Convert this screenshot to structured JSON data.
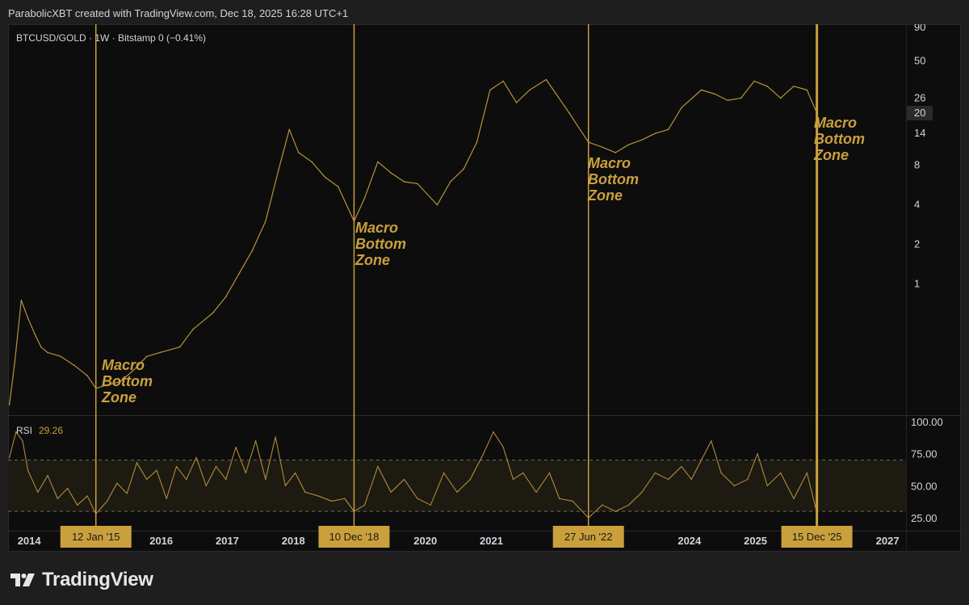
{
  "header": {
    "attribution": "ParabolicXBT created with TradingView.com, Dec 18, 2025 16:28 UTC+1",
    "symbol_line": "BTCUSD/GOLD · 1W · Bitstamp  0 (−0.41%)"
  },
  "footer": {
    "brand": "TradingView"
  },
  "colors": {
    "accent": "#c9a03c",
    "price_line": "#b8923a",
    "rsi_line": "#b08a3a",
    "zone_band": "#1d1a12",
    "background": "#0d0d0d"
  },
  "annotations": [
    {
      "date_label": "12 Jan '15",
      "year": 2015.03,
      "text_lines": [
        "Macro",
        "Bottom",
        "Zone"
      ]
    },
    {
      "date_label": "10 Dec '18",
      "year": 2018.94,
      "text_lines": [
        "Macro",
        "Bottom",
        "Zone"
      ]
    },
    {
      "date_label": "27 Jun '22",
      "year": 2022.49,
      "text_lines": [
        "Macro",
        "Bottom",
        "Zone"
      ]
    },
    {
      "date_label": "15 Dec '25",
      "year": 2025.95,
      "text_lines": [
        "Macro",
        "Bottom",
        "Zone"
      ]
    }
  ],
  "chart_data": [
    {
      "type": "line",
      "title": "BTCUSD/GOLD · 1W · Bitstamp",
      "y_scale": "log",
      "y_ticks": [
        1,
        2,
        4,
        8,
        14,
        20,
        26,
        50,
        90
      ],
      "current_value_label": "20",
      "x_ticks": [
        "2014",
        "2016",
        "2017",
        "2018",
        "2020",
        "2021",
        "2024",
        "2025",
        "2027"
      ],
      "xlim": [
        2013.7,
        2027.3
      ],
      "x": [
        2013.72,
        2013.8,
        2013.9,
        2014.0,
        2014.1,
        2014.2,
        2014.3,
        2014.5,
        2014.7,
        2014.9,
        2015.03,
        2015.2,
        2015.4,
        2015.6,
        2015.8,
        2016.0,
        2016.3,
        2016.5,
        2016.8,
        2017.0,
        2017.2,
        2017.4,
        2017.6,
        2017.8,
        2017.96,
        2018.1,
        2018.3,
        2018.5,
        2018.7,
        2018.94,
        2019.1,
        2019.3,
        2019.5,
        2019.7,
        2019.9,
        2020.2,
        2020.4,
        2020.6,
        2020.8,
        2021.0,
        2021.2,
        2021.4,
        2021.6,
        2021.85,
        2022.0,
        2022.2,
        2022.49,
        2022.7,
        2022.9,
        2023.1,
        2023.3,
        2023.5,
        2023.7,
        2023.9,
        2024.2,
        2024.4,
        2024.6,
        2024.8,
        2025.0,
        2025.2,
        2025.4,
        2025.6,
        2025.8,
        2025.95
      ],
      "values": [
        0.12,
        0.25,
        0.75,
        0.55,
        0.42,
        0.33,
        0.3,
        0.28,
        0.24,
        0.2,
        0.16,
        0.17,
        0.18,
        0.22,
        0.28,
        0.3,
        0.33,
        0.45,
        0.6,
        0.8,
        1.2,
        1.8,
        3.0,
        7.5,
        15.0,
        10.0,
        8.5,
        6.5,
        5.5,
        3.0,
        4.5,
        8.5,
        7.0,
        6.0,
        5.8,
        4.0,
        6.0,
        7.5,
        12.0,
        30.0,
        35.0,
        24.0,
        30.0,
        36.0,
        28.0,
        20.0,
        12.0,
        11.0,
        10.0,
        11.5,
        12.5,
        14.0,
        15.0,
        22.0,
        30.0,
        28.0,
        25.0,
        26.0,
        35.0,
        32.0,
        26.0,
        32.0,
        30.0,
        20.0
      ]
    },
    {
      "type": "line",
      "title": "RSI",
      "current_value": "29.26",
      "ylim": [
        20,
        100
      ],
      "y_ticks": [
        "100.00",
        "75.00",
        "50.00",
        "25.00"
      ],
      "band": [
        30,
        70
      ],
      "xlim": [
        2013.7,
        2027.3
      ],
      "x": [
        2013.72,
        2013.82,
        2013.92,
        2014.0,
        2014.15,
        2014.3,
        2014.45,
        2014.6,
        2014.75,
        2014.9,
        2015.03,
        2015.2,
        2015.35,
        2015.5,
        2015.65,
        2015.8,
        2015.95,
        2016.1,
        2016.25,
        2016.4,
        2016.55,
        2016.7,
        2016.85,
        2017.0,
        2017.15,
        2017.3,
        2017.45,
        2017.6,
        2017.75,
        2017.9,
        2018.05,
        2018.2,
        2018.4,
        2018.6,
        2018.8,
        2018.94,
        2019.1,
        2019.3,
        2019.5,
        2019.7,
        2019.9,
        2020.1,
        2020.3,
        2020.5,
        2020.7,
        2020.9,
        2021.05,
        2021.2,
        2021.35,
        2021.5,
        2021.7,
        2021.9,
        2022.05,
        2022.25,
        2022.49,
        2022.7,
        2022.9,
        2023.1,
        2023.3,
        2023.5,
        2023.7,
        2023.9,
        2024.05,
        2024.2,
        2024.35,
        2024.5,
        2024.7,
        2024.9,
        2025.05,
        2025.2,
        2025.4,
        2025.6,
        2025.8,
        2025.95
      ],
      "values": [
        72,
        92,
        85,
        62,
        45,
        58,
        40,
        48,
        35,
        42,
        28,
        38,
        52,
        44,
        68,
        55,
        62,
        40,
        65,
        55,
        72,
        50,
        65,
        55,
        80,
        60,
        85,
        55,
        88,
        50,
        60,
        45,
        42,
        38,
        40,
        30,
        35,
        65,
        45,
        55,
        40,
        35,
        60,
        45,
        55,
        75,
        92,
        80,
        55,
        60,
        45,
        60,
        40,
        38,
        25,
        35,
        30,
        35,
        45,
        60,
        55,
        65,
        55,
        70,
        85,
        60,
        50,
        55,
        75,
        50,
        60,
        40,
        60,
        29
      ]
    }
  ]
}
